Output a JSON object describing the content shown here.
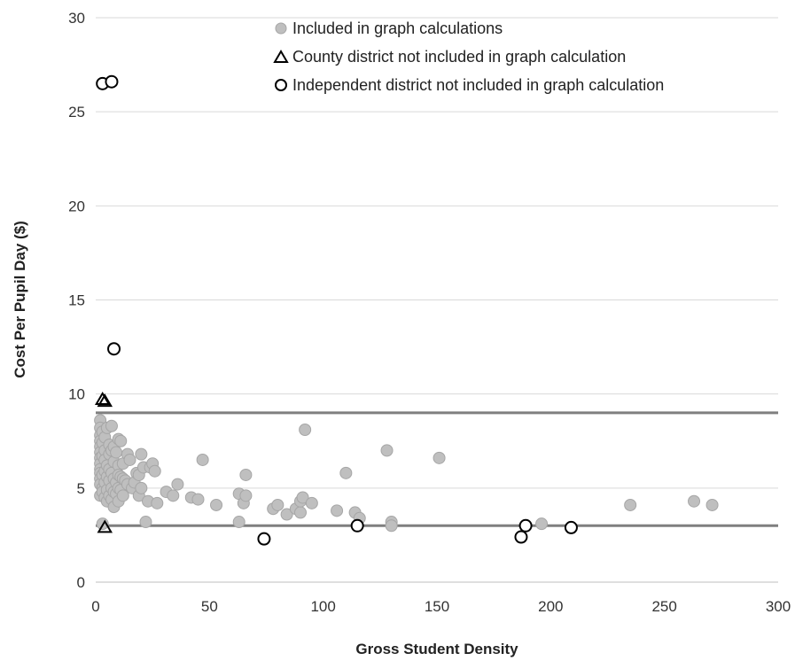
{
  "chart_data": {
    "type": "scatter",
    "xlabel": "Gross Student Density",
    "ylabel": "Cost Per Pupil Day ($)",
    "xlim": [
      0,
      300
    ],
    "ylim": [
      0,
      30
    ],
    "x_ticks": [
      "0",
      "50",
      "100",
      "150",
      "200",
      "250",
      "300"
    ],
    "y_ticks": [
      "0",
      "5",
      "10",
      "15",
      "20",
      "25",
      "30"
    ],
    "grid": "horizontal",
    "legend_position": "top-center",
    "reference_lines": [
      9.0,
      3.0
    ],
    "series": [
      {
        "name": "Included in graph calculations",
        "marker": "filled-circle",
        "color": "#bfbfbf",
        "points": [
          [
            2,
            8.6
          ],
          [
            2,
            8.2
          ],
          [
            2,
            7.8
          ],
          [
            2,
            7.5
          ],
          [
            2,
            7.2
          ],
          [
            2,
            6.9
          ],
          [
            2,
            6.6
          ],
          [
            2,
            6.3
          ],
          [
            2,
            6.0
          ],
          [
            2,
            5.8
          ],
          [
            2,
            5.5
          ],
          [
            2,
            5.2
          ],
          [
            2,
            4.6
          ],
          [
            3,
            8.0
          ],
          [
            3,
            7.4
          ],
          [
            3,
            6.7
          ],
          [
            3,
            5.7
          ],
          [
            3,
            5.0
          ],
          [
            3,
            4.8
          ],
          [
            3,
            3.1
          ],
          [
            4,
            7.7
          ],
          [
            4,
            7.0
          ],
          [
            4,
            6.5
          ],
          [
            4,
            5.9
          ],
          [
            4,
            5.3
          ],
          [
            4,
            4.5
          ],
          [
            5,
            8.2
          ],
          [
            5,
            6.2
          ],
          [
            5,
            5.6
          ],
          [
            5,
            4.9
          ],
          [
            5,
            4.3
          ],
          [
            6,
            7.3
          ],
          [
            6,
            6.8
          ],
          [
            6,
            6.0
          ],
          [
            6,
            5.4
          ],
          [
            6,
            4.6
          ],
          [
            7,
            8.3
          ],
          [
            7,
            7.0
          ],
          [
            7,
            5.8
          ],
          [
            7,
            5.0
          ],
          [
            7,
            4.4
          ],
          [
            8,
            7.2
          ],
          [
            8,
            6.4
          ],
          [
            8,
            5.5
          ],
          [
            8,
            4.8
          ],
          [
            8,
            4.0
          ],
          [
            9,
            6.9
          ],
          [
            9,
            5.3
          ],
          [
            9,
            4.7
          ],
          [
            10,
            7.6
          ],
          [
            10,
            6.2
          ],
          [
            10,
            5.7
          ],
          [
            10,
            5.0
          ],
          [
            10,
            4.3
          ],
          [
            11,
            7.5
          ],
          [
            11,
            5.6
          ],
          [
            11,
            4.9
          ],
          [
            12,
            6.3
          ],
          [
            12,
            5.5
          ],
          [
            12,
            4.6
          ],
          [
            13,
            5.4
          ],
          [
            14,
            6.8
          ],
          [
            14,
            5.2
          ],
          [
            15,
            6.5
          ],
          [
            16,
            5.0
          ],
          [
            17,
            5.3
          ],
          [
            18,
            5.8
          ],
          [
            19,
            4.6
          ],
          [
            19,
            5.7
          ],
          [
            20,
            6.8
          ],
          [
            20,
            5.0
          ],
          [
            21,
            6.1
          ],
          [
            22,
            3.2
          ],
          [
            23,
            4.3
          ],
          [
            24,
            6.1
          ],
          [
            25,
            6.3
          ],
          [
            26,
            5.9
          ],
          [
            27,
            4.2
          ],
          [
            31,
            4.8
          ],
          [
            34,
            4.6
          ],
          [
            36,
            5.2
          ],
          [
            42,
            4.5
          ],
          [
            45,
            4.4
          ],
          [
            47,
            6.5
          ],
          [
            53,
            4.1
          ],
          [
            63,
            4.7
          ],
          [
            63,
            3.2
          ],
          [
            65,
            4.2
          ],
          [
            66,
            4.6
          ],
          [
            66,
            5.7
          ],
          [
            78,
            3.9
          ],
          [
            80,
            4.1
          ],
          [
            84,
            3.6
          ],
          [
            88,
            3.9
          ],
          [
            90,
            3.7
          ],
          [
            90,
            4.3
          ],
          [
            91,
            4.5
          ],
          [
            92,
            8.1
          ],
          [
            95,
            4.2
          ],
          [
            106,
            3.8
          ],
          [
            110,
            5.8
          ],
          [
            114,
            3.7
          ],
          [
            116,
            3.4
          ],
          [
            128,
            7.0
          ],
          [
            130,
            3.2
          ],
          [
            130,
            3.0
          ],
          [
            151,
            6.6
          ],
          [
            196,
            3.1
          ],
          [
            235,
            4.1
          ],
          [
            263,
            4.3
          ],
          [
            271,
            4.1
          ]
        ]
      },
      {
        "name": "County district not included in graph calculation",
        "marker": "open-triangle",
        "color": "#000000",
        "points": [
          [
            3,
            9.7
          ],
          [
            4,
            9.6
          ],
          [
            4,
            2.9
          ]
        ]
      },
      {
        "name": "Independent district not included in graph calculation",
        "marker": "open-circle",
        "color": "#000000",
        "points": [
          [
            3,
            26.5
          ],
          [
            7,
            26.6
          ],
          [
            8,
            12.4
          ],
          [
            74,
            2.3
          ],
          [
            115,
            3.0
          ],
          [
            187,
            2.4
          ],
          [
            189,
            3.0
          ],
          [
            209,
            2.9
          ]
        ]
      }
    ]
  }
}
